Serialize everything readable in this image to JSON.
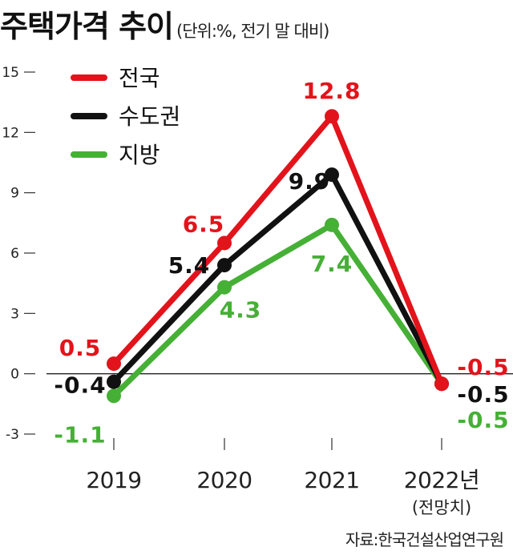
{
  "title": "주택가격 추이",
  "subtitle": "(단위:%, 전기 말 대비)",
  "source": "자료:한국건설산업연구원",
  "colors": {
    "전국": "#e3131b",
    "수도권": "#111111",
    "지방": "#45b035"
  },
  "chart_data": {
    "type": "line",
    "categories": [
      "2019",
      "2020",
      "2021",
      "2022년"
    ],
    "category_note": "(전망치)",
    "ylim": [
      -3,
      15
    ],
    "yticks": [
      -3,
      0,
      3,
      6,
      9,
      12,
      15
    ],
    "grid": false,
    "legend_position": "top-left",
    "series": [
      {
        "name": "전국",
        "color": "#e3131b",
        "values": [
          0.5,
          6.5,
          12.8,
          -0.5
        ]
      },
      {
        "name": "수도권",
        "color": "#111111",
        "values": [
          -0.4,
          5.4,
          9.9,
          -0.5
        ]
      },
      {
        "name": "지방",
        "color": "#45b035",
        "values": [
          -1.1,
          4.3,
          7.4,
          -0.5
        ]
      }
    ],
    "data_labels": [
      [
        "0.5",
        "6.5",
        "12.8",
        "-0.5"
      ],
      [
        "-0.4",
        "5.4",
        "9.9",
        "-0.5"
      ],
      [
        "-1.1",
        "4.3",
        "7.4",
        "-0.5"
      ]
    ]
  }
}
